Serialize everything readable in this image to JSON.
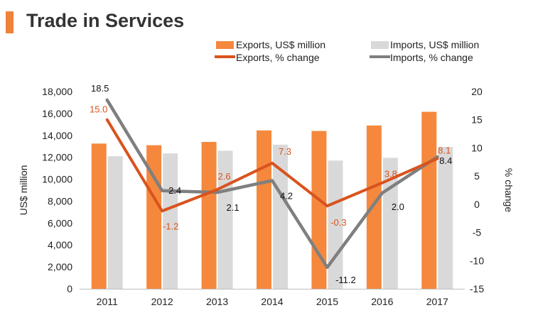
{
  "header": {
    "title": "Trade in Services"
  },
  "colors": {
    "exports_bar": "#f5883d",
    "imports_bar": "#d9d9d9",
    "exports_line": "#d9531e",
    "imports_line": "#7f7f7f",
    "exports_label": "#d9531e",
    "imports_label": "#111111",
    "title_accent": "#f0813a"
  },
  "chart_data": {
    "type": "bar+line",
    "title": "Trade in Services",
    "categories": [
      "2011",
      "2012",
      "2013",
      "2014",
      "2015",
      "2016",
      "2017"
    ],
    "ylabel": "US$ million",
    "y2label": "% change",
    "ylim": [
      0,
      18000
    ],
    "y_ticks": [
      "0",
      "2,000",
      "4,000",
      "6,000",
      "8,000",
      "10,000",
      "12,000",
      "14,000",
      "16,000",
      "18,000"
    ],
    "y2lim": [
      -15,
      20
    ],
    "y2_ticks": [
      "-15",
      "-10",
      "-5",
      "0",
      "5",
      "10",
      "15",
      "20"
    ],
    "legend_position": "top-right",
    "series": [
      {
        "name": "Exports, US$ million",
        "kind": "bar",
        "axis": "left",
        "values": [
          13250,
          13100,
          13400,
          14450,
          14400,
          14900,
          16150
        ]
      },
      {
        "name": "Imports, US$ million",
        "kind": "bar",
        "axis": "left",
        "values": [
          12100,
          12350,
          12600,
          13150,
          11700,
          11950,
          12950
        ]
      },
      {
        "name": "Exports, % change",
        "kind": "line",
        "axis": "right",
        "values": [
          15.0,
          -1.2,
          2.6,
          7.3,
          -0.3,
          3.8,
          8.1
        ],
        "labels": [
          "15.0",
          "-1.2",
          "2.6",
          "7.3",
          "-0.3",
          "3.8",
          "8.1"
        ]
      },
      {
        "name": "Imports, % change",
        "kind": "line",
        "axis": "right",
        "values": [
          18.5,
          2.4,
          2.1,
          4.2,
          -11.2,
          2.0,
          8.4
        ],
        "labels": [
          "18.5",
          "2.4",
          "2.1",
          "4.2",
          "-11.2",
          "2.0",
          "8.4"
        ]
      }
    ]
  }
}
